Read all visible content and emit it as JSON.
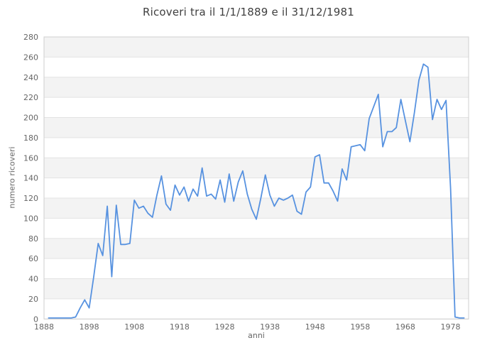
{
  "title": "Ricoveri tra il 1/1/1889 e il 31/12/1981",
  "chart_data": {
    "type": "line",
    "title": "Ricoveri tra il 1/1/1889 e il 31/12/1981",
    "xlabel": "anni",
    "ylabel": "numero ricoveri",
    "xlim": [
      1888,
      1982
    ],
    "ylim": [
      0,
      280
    ],
    "x_ticks": [
      1888,
      1898,
      1908,
      1918,
      1928,
      1938,
      1948,
      1958,
      1968,
      1978
    ],
    "y_ticks": [
      0,
      20,
      40,
      60,
      80,
      100,
      120,
      140,
      160,
      180,
      200,
      220,
      240,
      260,
      280
    ],
    "grid": true,
    "legend": "none",
    "line_color": "#5792e0",
    "band_color": "#f3f3f3",
    "grid_color": "#e3e3e3",
    "border_color": "#cfcfcf",
    "series": [
      {
        "name": "numero ricoveri",
        "x": [
          1889,
          1890,
          1891,
          1892,
          1893,
          1894,
          1895,
          1896,
          1897,
          1898,
          1899,
          1900,
          1901,
          1902,
          1903,
          1904,
          1905,
          1906,
          1907,
          1908,
          1909,
          1910,
          1911,
          1912,
          1913,
          1914,
          1915,
          1916,
          1917,
          1918,
          1919,
          1920,
          1921,
          1922,
          1923,
          1924,
          1925,
          1926,
          1927,
          1928,
          1929,
          1930,
          1931,
          1932,
          1933,
          1934,
          1935,
          1936,
          1937,
          1938,
          1939,
          1940,
          1941,
          1942,
          1943,
          1944,
          1945,
          1946,
          1947,
          1948,
          1949,
          1950,
          1951,
          1952,
          1953,
          1954,
          1955,
          1956,
          1957,
          1958,
          1959,
          1960,
          1961,
          1962,
          1963,
          1964,
          1965,
          1966,
          1967,
          1968,
          1969,
          1970,
          1971,
          1972,
          1973,
          1974,
          1975,
          1976,
          1977,
          1978,
          1979,
          1980,
          1981
        ],
        "values": [
          1,
          1,
          1,
          1,
          1,
          1,
          2,
          11,
          19,
          11,
          42,
          75,
          63,
          112,
          42,
          113,
          74,
          74,
          75,
          118,
          110,
          112,
          105,
          101,
          123,
          142,
          114,
          108,
          133,
          123,
          131,
          117,
          129,
          122,
          150,
          122,
          124,
          119,
          138,
          116,
          144,
          117,
          136,
          147,
          124,
          109,
          99,
          120,
          143,
          123,
          112,
          120,
          118,
          120,
          123,
          107,
          104,
          126,
          131,
          161,
          163,
          135,
          135,
          127,
          117,
          149,
          138,
          171,
          172,
          173,
          167,
          199,
          211,
          223,
          171,
          186,
          186,
          190,
          218,
          197,
          176,
          205,
          237,
          253,
          250,
          198,
          218,
          208,
          217,
          130,
          2,
          1,
          1
        ]
      }
    ]
  }
}
